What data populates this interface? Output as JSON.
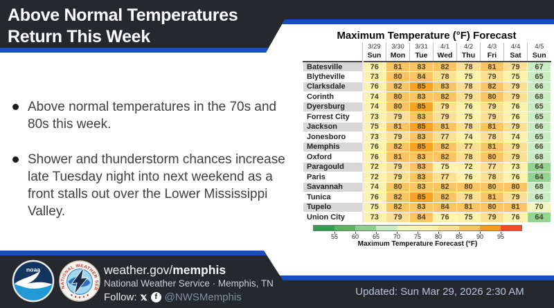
{
  "header": {
    "title_line1": "Above Normal Temperatures",
    "title_line2": "Return This Week"
  },
  "bullets": [
    "Above normal temperatures in the 70s and 80s this week.",
    "Shower and thunderstorm chances increase late Tuesday night into next weekend as a front stalls out over the Lower Mississippi Valley."
  ],
  "chart_data": {
    "type": "table",
    "title": "Maximum Temperature (°F) Forecast",
    "columns": [
      {
        "date": "3/29",
        "day": "Sun"
      },
      {
        "date": "3/30",
        "day": "Mon"
      },
      {
        "date": "3/31",
        "day": "Tue"
      },
      {
        "date": "4/1",
        "day": "Wed"
      },
      {
        "date": "4/2",
        "day": "Thu"
      },
      {
        "date": "4/3",
        "day": "Fri"
      },
      {
        "date": "4/4",
        "day": "Sat"
      },
      {
        "date": "4/5",
        "day": "Sun"
      }
    ],
    "rows": [
      {
        "city": "Batesville",
        "values": [
          76,
          81,
          83,
          82,
          78,
          81,
          79,
          67
        ]
      },
      {
        "city": "Blytheville",
        "values": [
          73,
          80,
          84,
          78,
          75,
          79,
          75,
          65
        ]
      },
      {
        "city": "Clarksdale",
        "values": [
          76,
          82,
          85,
          83,
          78,
          82,
          79,
          66
        ]
      },
      {
        "city": "Corinth",
        "values": [
          74,
          80,
          83,
          82,
          79,
          80,
          79,
          68
        ]
      },
      {
        "city": "Dyersburg",
        "values": [
          74,
          80,
          85,
          79,
          76,
          79,
          76,
          65
        ]
      },
      {
        "city": "Forrest City",
        "values": [
          73,
          79,
          83,
          79,
          75,
          79,
          76,
          65
        ]
      },
      {
        "city": "Jackson",
        "values": [
          75,
          81,
          85,
          81,
          78,
          81,
          79,
          66
        ]
      },
      {
        "city": "Jonesboro",
        "values": [
          73,
          79,
          83,
          77,
          74,
          78,
          74,
          65
        ]
      },
      {
        "city": "Memphis",
        "values": [
          76,
          82,
          85,
          82,
          77,
          81,
          79,
          66
        ]
      },
      {
        "city": "Oxford",
        "values": [
          76,
          81,
          83,
          82,
          78,
          80,
          79,
          68
        ]
      },
      {
        "city": "Paragould",
        "values": [
          72,
          79,
          83,
          75,
          72,
          77,
          73,
          64
        ]
      },
      {
        "city": "Paris",
        "values": [
          72,
          79,
          83,
          77,
          76,
          78,
          76,
          64
        ]
      },
      {
        "city": "Savannah",
        "values": [
          74,
          80,
          83,
          82,
          80,
          80,
          80,
          68
        ]
      },
      {
        "city": "Tunica",
        "values": [
          76,
          82,
          85,
          82,
          78,
          81,
          79,
          66
        ]
      },
      {
        "city": "Tupelo",
        "values": [
          75,
          82,
          83,
          84,
          81,
          80,
          81,
          70
        ]
      },
      {
        "city": "Union City",
        "values": [
          73,
          79,
          84,
          76,
          75,
          79,
          76,
          64
        ]
      }
    ],
    "value_colors": [
      {
        "max": 64,
        "color": "#93d492"
      },
      {
        "max": 68,
        "color": "#c9ecc5"
      },
      {
        "max": 71,
        "color": "#f1f6c1"
      },
      {
        "max": 76,
        "color": "#fdf2ad"
      },
      {
        "max": 79,
        "color": "#fbdf95"
      },
      {
        "max": 84,
        "color": "#f8c464"
      },
      {
        "max": 120,
        "color": "#f7a325"
      }
    ],
    "colorbar": {
      "label": "Maximum Temperature Forecast (°F)",
      "ticks": [
        "55",
        "60",
        "65",
        "70",
        "75",
        "80",
        "85",
        "90",
        "95"
      ],
      "segment_colors": [
        "#2f9e4e",
        "#57b65c",
        "#8ed08b",
        "#c9ecc5",
        "#f1f6c1",
        "#fdf2ad",
        "#fbdf95",
        "#f8c464",
        "#f79a2d",
        "#e64f2a"
      ]
    }
  },
  "footer": {
    "website_prefix": "weather.gov/",
    "website_bold": "memphis",
    "org_line": "National Weather Service · Memphis, TN",
    "follow_label": "Follow:",
    "social_handle": "@NWSMemphis",
    "social_icons": [
      "x-icon",
      "facebook-icon"
    ],
    "updated": "Updated: Sun Mar 29, 2026 2:30 AM"
  },
  "colors": {
    "accent_blue": "#154fc2",
    "dark_band": "#25282c",
    "row_label_gray": "#d7d7d7"
  }
}
